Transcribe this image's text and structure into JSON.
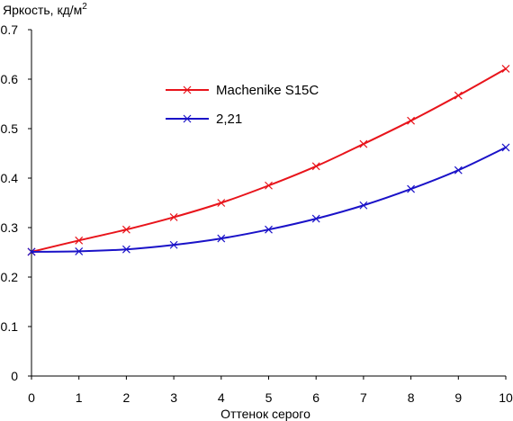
{
  "chart_data": {
    "type": "line",
    "ylabel": "Яркость, кд/м",
    "ylabel_sup": "2",
    "xlabel": "Оттенок серого",
    "x": [
      0,
      1,
      2,
      3,
      4,
      5,
      6,
      7,
      8,
      9,
      10
    ],
    "xlim": [
      0,
      10
    ],
    "ylim": [
      0,
      0.7
    ],
    "x_ticks": [
      0,
      1,
      2,
      3,
      4,
      5,
      6,
      7,
      8,
      9,
      10
    ],
    "y_ticks": [
      0,
      0.1,
      0.2,
      0.3,
      0.4,
      0.5,
      0.6,
      0.7
    ],
    "grid": false,
    "legend_position": "upper-left-inside",
    "series": [
      {
        "name": "Machenike S15C",
        "color": "#e8141b",
        "marker": "x",
        "values": [
          0.251,
          0.274,
          0.296,
          0.321,
          0.35,
          0.385,
          0.424,
          0.469,
          0.516,
          0.567,
          0.621
        ]
      },
      {
        "name": "2,21",
        "color": "#1a12c8",
        "marker": "x",
        "values": [
          0.251,
          0.252,
          0.256,
          0.265,
          0.278,
          0.296,
          0.318,
          0.345,
          0.378,
          0.416,
          0.462
        ]
      }
    ]
  }
}
